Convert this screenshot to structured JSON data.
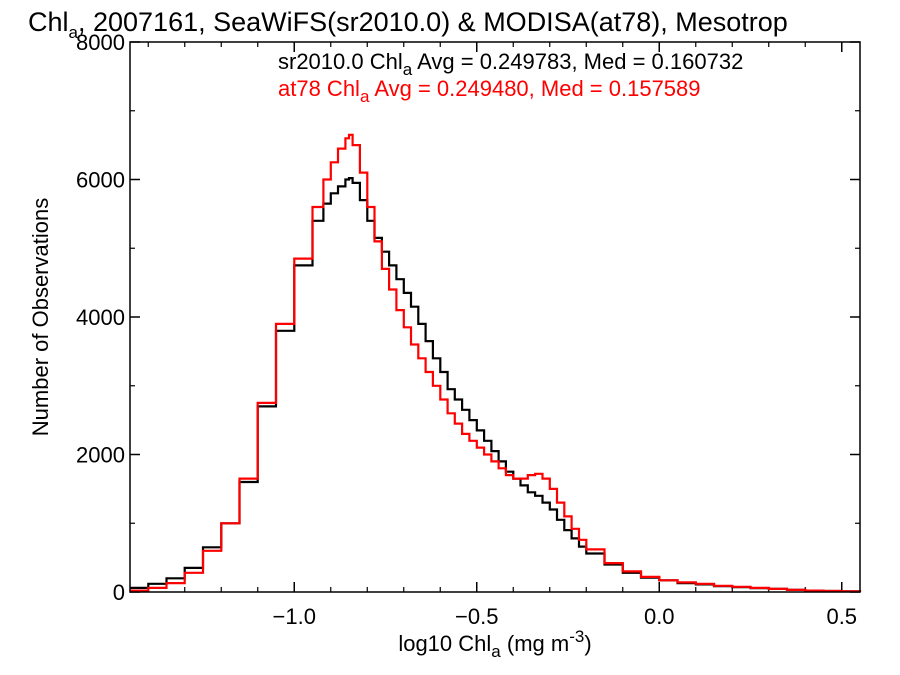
{
  "chart_data": {
    "type": "line",
    "title": {
      "prefix": "Chl",
      "subscript": "a",
      "rest": ", 2007161, SeaWiFS(sr2010.0) & MODISA(at78), Mesotrop"
    },
    "xlabel": {
      "prefix": "log10 Chl",
      "subscript": "a",
      "middle": " (mg m",
      "superscript": "-3",
      "suffix": ")"
    },
    "ylabel": "Number of Observations",
    "xlim": [
      -1.45,
      0.55
    ],
    "ylim": [
      0,
      8000
    ],
    "x_ticks": [
      {
        "value": -1.0,
        "label": "−1.0"
      },
      {
        "value": -0.5,
        "label": "−0.5"
      },
      {
        "value": 0.0,
        "label": "0.0"
      },
      {
        "value": 0.5,
        "label": "0.5"
      }
    ],
    "y_ticks": [
      {
        "value": 0,
        "label": "0"
      },
      {
        "value": 2000,
        "label": "2000"
      },
      {
        "value": 4000,
        "label": "4000"
      },
      {
        "value": 6000,
        "label": "6000"
      },
      {
        "value": 8000,
        "label": "8000"
      }
    ],
    "legend_placement": "top-right",
    "series": [
      {
        "name": "sr2010.0",
        "color": "#000000",
        "legend": {
          "prefix": "sr2010.0 Chl",
          "subscript": "a",
          "suffix": " Avg = 0.249783, Med = 0.160732"
        },
        "x": [
          -1.45,
          -1.4,
          -1.35,
          -1.3,
          -1.25,
          -1.2,
          -1.15,
          -1.1,
          -1.05,
          -1.0,
          -0.95,
          -0.92,
          -0.9,
          -0.88,
          -0.86,
          -0.85,
          -0.84,
          -0.82,
          -0.8,
          -0.78,
          -0.76,
          -0.74,
          -0.72,
          -0.7,
          -0.68,
          -0.66,
          -0.64,
          -0.62,
          -0.6,
          -0.58,
          -0.56,
          -0.54,
          -0.52,
          -0.5,
          -0.48,
          -0.46,
          -0.44,
          -0.42,
          -0.4,
          -0.38,
          -0.36,
          -0.34,
          -0.32,
          -0.3,
          -0.28,
          -0.26,
          -0.24,
          -0.22,
          -0.2,
          -0.15,
          -0.1,
          -0.05,
          0.0,
          0.05,
          0.1,
          0.15,
          0.2,
          0.25,
          0.3,
          0.35,
          0.4,
          0.45,
          0.5,
          0.55
        ],
        "y": [
          60,
          120,
          200,
          350,
          650,
          1000,
          1600,
          2700,
          3800,
          4750,
          5400,
          5650,
          5800,
          5900,
          6000,
          6020,
          5950,
          5700,
          5400,
          5150,
          4950,
          4750,
          4550,
          4350,
          4150,
          3900,
          3650,
          3400,
          3200,
          2950,
          2800,
          2650,
          2500,
          2350,
          2200,
          2050,
          1900,
          1750,
          1650,
          1550,
          1450,
          1400,
          1300,
          1200,
          1050,
          900,
          780,
          660,
          560,
          400,
          280,
          210,
          170,
          130,
          110,
          85,
          70,
          55,
          45,
          30,
          20,
          15,
          10,
          5
        ]
      },
      {
        "name": "at78",
        "color": "#ff0000",
        "legend": {
          "prefix": "at78 Chl",
          "subscript": "a",
          "suffix": " Avg = 0.249480, Med = 0.157589"
        },
        "x": [
          -1.45,
          -1.4,
          -1.35,
          -1.3,
          -1.25,
          -1.2,
          -1.15,
          -1.1,
          -1.05,
          -1.0,
          -0.95,
          -0.92,
          -0.9,
          -0.88,
          -0.86,
          -0.85,
          -0.84,
          -0.82,
          -0.8,
          -0.78,
          -0.76,
          -0.74,
          -0.72,
          -0.7,
          -0.68,
          -0.66,
          -0.64,
          -0.62,
          -0.6,
          -0.58,
          -0.56,
          -0.54,
          -0.52,
          -0.5,
          -0.48,
          -0.46,
          -0.44,
          -0.42,
          -0.4,
          -0.38,
          -0.36,
          -0.34,
          -0.32,
          -0.3,
          -0.28,
          -0.26,
          -0.24,
          -0.22,
          -0.2,
          -0.15,
          -0.1,
          -0.05,
          0.0,
          0.05,
          0.1,
          0.15,
          0.2,
          0.25,
          0.3,
          0.35,
          0.4,
          0.45,
          0.5,
          0.55
        ],
        "y": [
          20,
          60,
          130,
          280,
          600,
          1000,
          1650,
          2750,
          3900,
          4850,
          5600,
          6000,
          6250,
          6450,
          6600,
          6650,
          6500,
          6100,
          5600,
          5100,
          4700,
          4400,
          4100,
          3850,
          3600,
          3400,
          3200,
          3000,
          2800,
          2600,
          2450,
          2300,
          2200,
          2100,
          2000,
          1900,
          1800,
          1700,
          1650,
          1650,
          1700,
          1720,
          1650,
          1500,
          1300,
          1100,
          920,
          760,
          620,
          420,
          300,
          220,
          170,
          140,
          120,
          90,
          75,
          60,
          45,
          30,
          20,
          15,
          10,
          5
        ]
      }
    ]
  }
}
